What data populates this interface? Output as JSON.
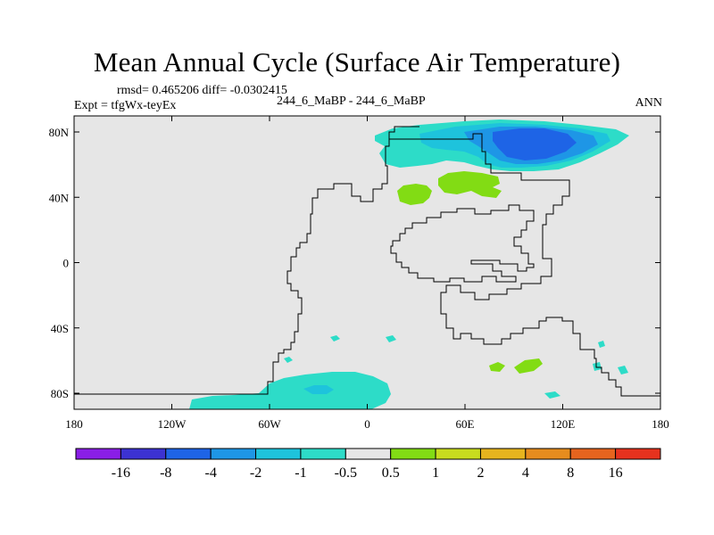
{
  "title": "Mean Annual Cycle (Surface Air Temperature)",
  "stats": "rmsd= 0.465206 diff= -0.0302415",
  "expt": "Expt = tfgWx-teyEx",
  "subtitle": "244_6_MaBP - 244_6_MaBP",
  "season": "ANN",
  "colors": {
    "ocean_fill": "#e6e6e6",
    "coast_line": "#000000"
  },
  "lon_ticks": [
    {
      "lon": -180,
      "label": "180"
    },
    {
      "lon": -120,
      "label": "120W"
    },
    {
      "lon": -60,
      "label": "60W"
    },
    {
      "lon": 0,
      "label": "0"
    },
    {
      "lon": 60,
      "label": "60E"
    },
    {
      "lon": 120,
      "label": "120E"
    },
    {
      "lon": 180,
      "label": "180"
    }
  ],
  "lat_ticks": [
    {
      "lat": 80,
      "label": "80N"
    },
    {
      "lat": 40,
      "label": "40N"
    },
    {
      "lat": 0,
      "label": "0"
    },
    {
      "lat": -40,
      "label": "40S"
    },
    {
      "lat": -80,
      "label": "80S"
    }
  ],
  "colorbar": {
    "colors": [
      "#8a1ee6",
      "#3c32d2",
      "#1e64e6",
      "#1e96e6",
      "#1ec3dc",
      "#2ddcc8",
      "#e6e6e6",
      "#82dc14",
      "#c8dc1e",
      "#e6b41e",
      "#e68c1e",
      "#e6641e",
      "#e6321e"
    ],
    "labels": [
      "-16",
      "-8",
      "-4",
      "-2",
      "-1",
      "-0.5",
      "0.5",
      "1",
      "2",
      "4",
      "8",
      "16"
    ]
  }
}
